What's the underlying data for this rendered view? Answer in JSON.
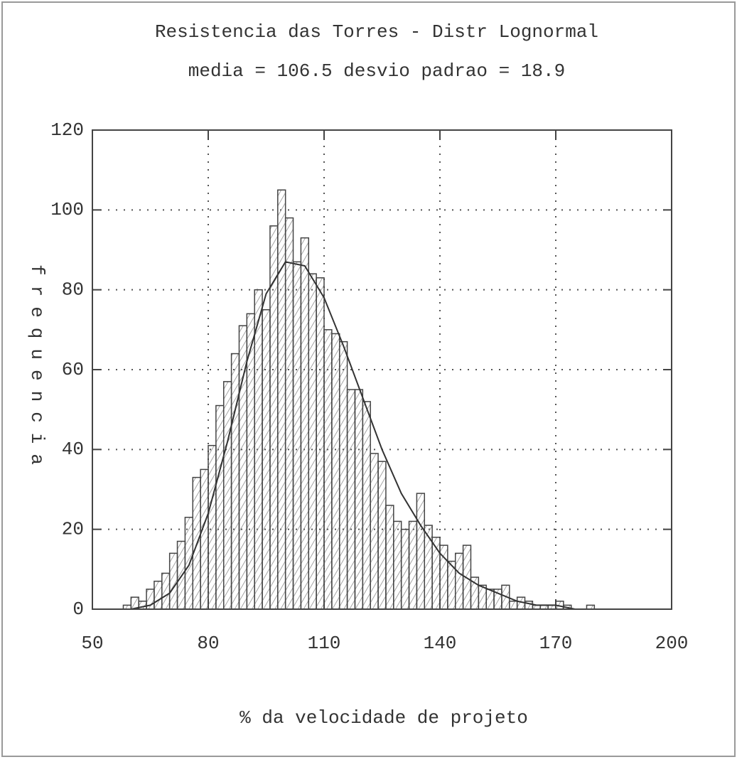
{
  "chart_data": {
    "type": "histogram",
    "title": "Resistencia das Torres - Distr Lognormal",
    "subtitle": "media = 106.5  desvio padrao = 18.9",
    "xlabel": "% da velocidade de projeto",
    "ylabel": "frequencia",
    "bins": [
      56,
      58,
      60,
      62,
      64,
      66,
      68,
      70,
      72,
      74,
      76,
      78,
      80,
      82,
      84,
      86,
      88,
      90,
      92,
      94,
      96,
      98,
      100,
      102,
      104,
      106,
      108,
      110,
      112,
      114,
      116,
      118,
      120,
      122,
      124,
      126,
      128,
      130,
      132,
      134,
      136,
      138,
      140,
      142,
      144,
      146,
      148,
      150,
      152,
      154,
      156,
      158,
      160,
      162,
      164,
      166,
      168,
      170,
      172,
      174,
      176,
      178,
      180,
      182,
      184,
      186,
      188
    ],
    "values": [
      0,
      1,
      3,
      2,
      5,
      7,
      9,
      14,
      17,
      23,
      33,
      35,
      41,
      51,
      57,
      64,
      71,
      74,
      80,
      75,
      96,
      105,
      98,
      87,
      93,
      84,
      83,
      70,
      69,
      67,
      55,
      55,
      52,
      39,
      37,
      26,
      22,
      20,
      22,
      29,
      21,
      18,
      16,
      12,
      14,
      16,
      8,
      6,
      5,
      5,
      6,
      2,
      3,
      2,
      1,
      1,
      1,
      2,
      1,
      0,
      0,
      1,
      0,
      0,
      0,
      0
    ],
    "fit": {
      "x": [
        60,
        65,
        70,
        75,
        80,
        85,
        90,
        95,
        100,
        105,
        110,
        115,
        120,
        125,
        130,
        135,
        140,
        145,
        150,
        155,
        160,
        165,
        170,
        175,
        180
      ],
      "values": [
        0,
        1,
        4,
        11,
        24,
        42,
        62,
        79,
        87,
        86,
        78,
        66,
        53,
        40,
        29,
        21,
        14,
        9,
        6,
        4,
        2,
        1,
        1,
        0,
        0
      ]
    },
    "color": "#444444",
    "xlim": [
      50,
      200
    ],
    "xticks": [
      50,
      80,
      110,
      140,
      170,
      200
    ],
    "ylim": [
      0,
      120
    ],
    "yticks": [
      0,
      20,
      40,
      60,
      80,
      100,
      120
    ],
    "grid": true
  }
}
